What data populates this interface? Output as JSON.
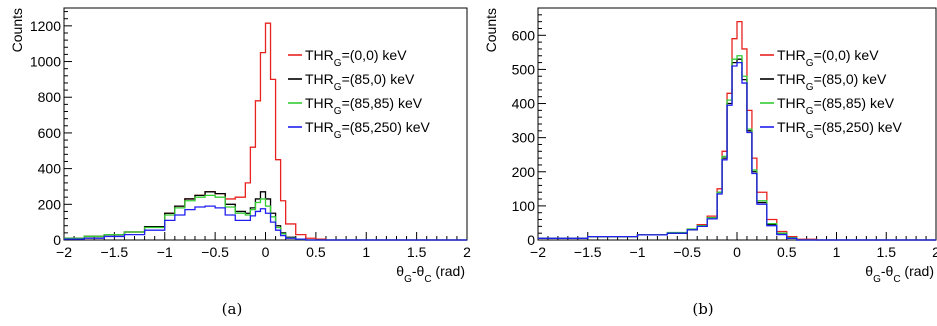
{
  "colors": {
    "s0": "#e8231f",
    "s1": "#000000",
    "s2": "#33cc33",
    "s3": "#1f1ff0"
  },
  "chart_data": [
    {
      "type": "line",
      "step": true,
      "caption": "(a)",
      "xlabel": "θG-θC (rad)",
      "ylabel": "Counts",
      "xlim": [
        -2,
        2
      ],
      "ylim": [
        0,
        1300
      ],
      "xticks": [
        -2,
        -1.5,
        -1,
        -0.5,
        0,
        0.5,
        1,
        1.5,
        2
      ],
      "yticks": [
        0,
        200,
        400,
        600,
        800,
        1000,
        1200
      ],
      "legend_position": "right",
      "x": [
        -2.0,
        -1.8,
        -1.6,
        -1.4,
        -1.2,
        -1.0,
        -0.9,
        -0.8,
        -0.7,
        -0.6,
        -0.5,
        -0.4,
        -0.3,
        -0.2,
        -0.15,
        -0.1,
        -0.05,
        0.0,
        0.05,
        0.1,
        0.15,
        0.2,
        0.3,
        0.4,
        0.5,
        0.6,
        0.8,
        1.0,
        1.5,
        2.0
      ],
      "series": [
        {
          "name": "THRG=(0,0) keV",
          "colorKey": "s0",
          "values": [
            10,
            20,
            30,
            45,
            75,
            150,
            190,
            230,
            250,
            270,
            260,
            230,
            240,
            320,
            520,
            780,
            1050,
            1215,
            900,
            450,
            220,
            90,
            30,
            10,
            5,
            0,
            0,
            0,
            0,
            0
          ]
        },
        {
          "name": "THRG=(85,0) keV",
          "colorKey": "s1",
          "values": [
            10,
            20,
            30,
            45,
            75,
            150,
            190,
            230,
            250,
            270,
            260,
            200,
            160,
            150,
            180,
            230,
            270,
            230,
            150,
            80,
            40,
            15,
            5,
            0,
            0,
            0,
            0,
            0,
            0,
            0
          ]
        },
        {
          "name": "THRG=(85,85) keV",
          "colorKey": "s2",
          "values": [
            10,
            20,
            30,
            45,
            70,
            140,
            180,
            220,
            240,
            250,
            240,
            185,
            150,
            140,
            170,
            210,
            230,
            190,
            130,
            70,
            35,
            12,
            5,
            0,
            0,
            0,
            0,
            0,
            0,
            0
          ]
        },
        {
          "name": "THRG=(85,250) keV",
          "colorKey": "s3",
          "values": [
            5,
            10,
            20,
            30,
            55,
            110,
            140,
            170,
            185,
            190,
            180,
            140,
            110,
            110,
            135,
            160,
            175,
            150,
            100,
            55,
            25,
            10,
            5,
            0,
            0,
            0,
            0,
            0,
            0,
            0
          ]
        }
      ]
    },
    {
      "type": "line",
      "step": true,
      "caption": "(b)",
      "xlabel": "θG-θC (rad)",
      "ylabel": "Counts",
      "xlim": [
        -2,
        2
      ],
      "ylim": [
        0,
        680
      ],
      "xticks": [
        -2,
        -1.5,
        -1,
        -0.5,
        0,
        0.5,
        1,
        1.5,
        2
      ],
      "yticks": [
        0,
        100,
        200,
        300,
        400,
        500,
        600
      ],
      "legend_position": "right",
      "x": [
        -2.0,
        -1.5,
        -1.0,
        -0.7,
        -0.5,
        -0.4,
        -0.3,
        -0.2,
        -0.15,
        -0.1,
        -0.05,
        0.0,
        0.05,
        0.1,
        0.15,
        0.2,
        0.3,
        0.4,
        0.5,
        0.6,
        0.8,
        1.0,
        2.0
      ],
      "series": [
        {
          "name": "THRG=(0,0) keV",
          "colorKey": "s0",
          "values": [
            5,
            10,
            15,
            20,
            30,
            45,
            70,
            150,
            260,
            430,
            590,
            640,
            560,
            380,
            240,
            140,
            60,
            25,
            10,
            2,
            0,
            0,
            0
          ]
        },
        {
          "name": "THRG=(85,0) keV",
          "colorKey": "s1",
          "values": [
            5,
            10,
            15,
            20,
            30,
            40,
            65,
            140,
            240,
            400,
            520,
            530,
            470,
            320,
            200,
            110,
            45,
            18,
            6,
            0,
            0,
            0,
            0
          ]
        },
        {
          "name": "THRG=(85,85) keV",
          "colorKey": "s2",
          "values": [
            5,
            10,
            15,
            22,
            32,
            42,
            65,
            140,
            245,
            410,
            530,
            540,
            480,
            325,
            205,
            115,
            48,
            20,
            7,
            0,
            0,
            0,
            0
          ]
        },
        {
          "name": "THRG=(85,250) keV",
          "colorKey": "s3",
          "values": [
            5,
            10,
            15,
            20,
            30,
            40,
            62,
            135,
            235,
            395,
            510,
            520,
            460,
            315,
            195,
            105,
            42,
            16,
            5,
            0,
            0,
            0,
            0
          ]
        }
      ]
    }
  ]
}
